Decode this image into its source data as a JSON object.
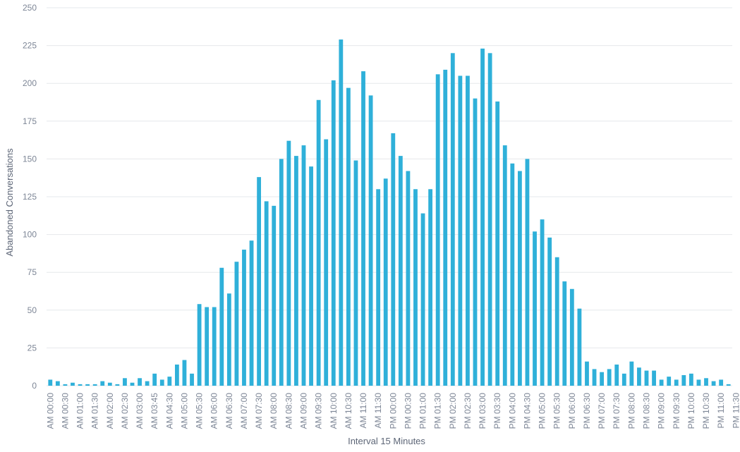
{
  "chart_data": {
    "type": "bar",
    "title": "",
    "xlabel": "Interval 15 Minutes",
    "ylabel": "Abandoned Conversations",
    "ylim": [
      0,
      250
    ],
    "yticks": [
      0,
      25,
      50,
      75,
      100,
      125,
      150,
      175,
      200,
      225,
      250
    ],
    "grid": true,
    "legend": "none",
    "x_tick_labels": [
      "AM 00:00",
      "AM 00:30",
      "AM 01:00",
      "AM 01:30",
      "AM 02:00",
      "AM 02:30",
      "AM 03:00",
      "AM 03:45",
      "AM 04:30",
      "AM 05:00",
      "AM 05:30",
      "AM 06:00",
      "AM 06:30",
      "AM 07:00",
      "AM 07:30",
      "AM 08:00",
      "AM 08:30",
      "AM 09:00",
      "AM 09:30",
      "AM 10:00",
      "AM 10:30",
      "AM 11:00",
      "AM 11:30",
      "PM 00:00",
      "PM 00:30",
      "PM 01:00",
      "PM 01:30",
      "PM 02:00",
      "PM 02:30",
      "PM 03:00",
      "PM 03:30",
      "PM 04:00",
      "PM 04:30",
      "PM 05:00",
      "PM 05:30",
      "PM 06:00",
      "PM 06:30",
      "PM 07:00",
      "PM 07:30",
      "PM 08:00",
      "PM 08:30",
      "PM 09:00",
      "PM 09:30",
      "PM 10:00",
      "PM 10:30",
      "PM 11:00",
      "PM 11:30"
    ],
    "series": [
      {
        "color": "#2fb0d9",
        "values": [
          4,
          3,
          1,
          2,
          1,
          1,
          1,
          3,
          2,
          1,
          5,
          2,
          5,
          3,
          8,
          4,
          6,
          14,
          17,
          8,
          54,
          52,
          52,
          78,
          61,
          82,
          90,
          96,
          138,
          122,
          119,
          150,
          162,
          152,
          159,
          145,
          189,
          163,
          202,
          229,
          197,
          149,
          208,
          192,
          130,
          137,
          167,
          152,
          142,
          130,
          114,
          130,
          206,
          209,
          220,
          205,
          205,
          190,
          223,
          220,
          188,
          159,
          147,
          142,
          150,
          102,
          110,
          98,
          85,
          69,
          64,
          51,
          16,
          11,
          9,
          11,
          14,
          8,
          16,
          12,
          10,
          10,
          4,
          6,
          4,
          7,
          8,
          4,
          5,
          3,
          4,
          1
        ]
      }
    ]
  },
  "axis": {
    "x_title": "Interval 15 Minutes",
    "y_title": "Abandoned Conversations"
  },
  "colors": {
    "bar": "#2fb0d9",
    "grid": "#e6e8ec",
    "axis_text": "#7d8696",
    "axis_title": "#5d6677"
  }
}
